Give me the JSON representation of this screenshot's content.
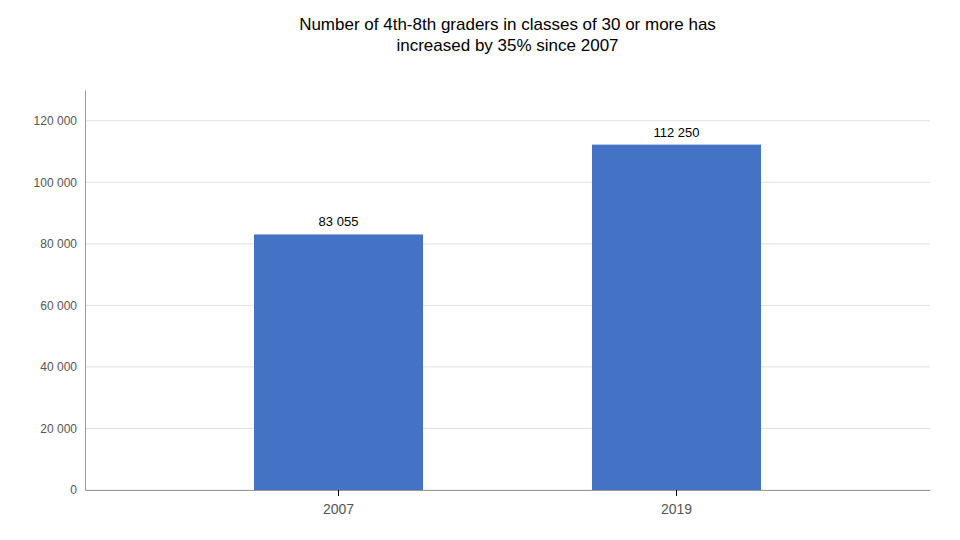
{
  "chart_data": {
    "type": "bar",
    "title": "Number of 4th-8th graders in classes of 30 or more has\nincreased by 35% since 2007",
    "categories": [
      "2007",
      "2019"
    ],
    "values": [
      83055,
      112250
    ],
    "value_labels": [
      "83 055",
      "112 250"
    ],
    "data_labels": true,
    "color": "#4472C4",
    "ylim": [
      0,
      130000
    ],
    "yticks": [
      0,
      {
        "value": 20000,
        "label": "20 000"
      },
      {
        "value": 40000,
        "label": "40 000"
      },
      {
        "value": 60000,
        "label": "60 000"
      },
      {
        "value": 80000,
        "label": "80 000"
      },
      {
        "value": 100000,
        "label": "100 000"
      },
      {
        "value": 120000,
        "label": "120 000"
      }
    ],
    "grid": true
  }
}
